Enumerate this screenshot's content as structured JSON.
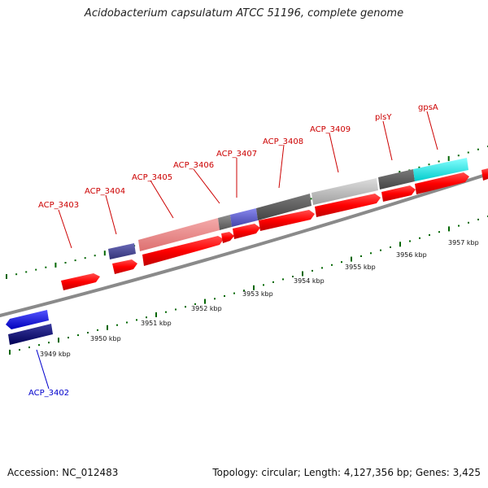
{
  "title": "Acidobacterium capsulatum ATCC 51196, complete genome",
  "footer": {
    "accession": "Accession: NC_012483",
    "summary": "Topology: circular; Length: 4,127,356 bp; Genes: 3,425"
  },
  "colors": {
    "forward_gene": "#ff0000",
    "reverse_gene": "#0000cc",
    "label_forward": "#cc0000",
    "label_reverse": "#0000cc",
    "tick": "#006600",
    "backbone": "#888888"
  },
  "scale": {
    "labels": [
      "3949 kbp",
      "3950 kbp",
      "3951 kbp",
      "3952 kbp",
      "3953 kbp",
      "3954 kbp",
      "3955 kbp",
      "3956 kbp",
      "3957 kbp"
    ]
  },
  "gene_labels": [
    {
      "name": "ACP_3402",
      "color": "#0000cc"
    },
    {
      "name": "ACP_3403",
      "color": "#cc0000"
    },
    {
      "name": "ACP_3404",
      "color": "#cc0000"
    },
    {
      "name": "ACP_3405",
      "color": "#cc0000"
    },
    {
      "name": "ACP_3406",
      "color": "#cc0000"
    },
    {
      "name": "ACP_3407",
      "color": "#cc0000"
    },
    {
      "name": "ACP_3408",
      "color": "#cc0000"
    },
    {
      "name": "ACP_3409",
      "color": "#cc0000"
    },
    {
      "name": "plsY",
      "color": "#cc0000"
    },
    {
      "name": "gpsA",
      "color": "#cc0000"
    }
  ],
  "feature_bars": [
    {
      "name": "reverse-gene-bar-blue",
      "color": "#1a1aee"
    },
    {
      "name": "reverse-gene-bar-navy",
      "color": "#0a0a7a"
    },
    {
      "name": "similarity-bar-purple-1",
      "color": "#4a4a99"
    },
    {
      "name": "similarity-bar-salmon",
      "color": "#ee8888"
    },
    {
      "name": "similarity-bar-gray-1",
      "color": "#777777"
    },
    {
      "name": "similarity-bar-purple-2",
      "color": "#6666cc"
    },
    {
      "name": "similarity-bar-gray-2",
      "color": "#666666"
    },
    {
      "name": "similarity-bar-silver",
      "color": "#bbbbbb"
    },
    {
      "name": "similarity-bar-gray-3",
      "color": "#555555"
    },
    {
      "name": "similarity-bar-cyan",
      "color": "#22eeee"
    }
  ]
}
